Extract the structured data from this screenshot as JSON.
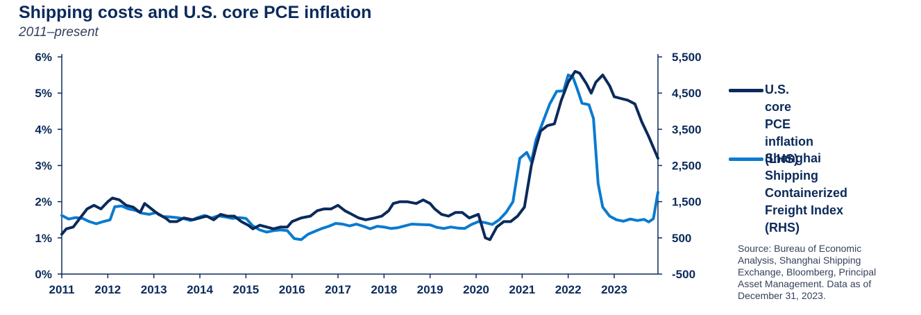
{
  "header": {
    "title": "Shipping costs and U.S. core PCE inflation",
    "subtitle": "2011–present"
  },
  "legend": {
    "items": [
      {
        "label": "U.S. core PCE\ninflation (LHS)",
        "color": "#0b2a5b"
      },
      {
        "label": "Shanghai Shipping\nContainerized\nFreight Index\n(RHS)",
        "color": "#0a7bd0"
      }
    ]
  },
  "source": "Source: Bureau of Economic Analysis, Shanghai Shipping Exchange, Bloomberg, Principal Asset Management. Data as of December 31, 2023.",
  "chart_data": {
    "type": "line",
    "title": "Shipping costs and U.S. core PCE inflation",
    "subtitle": "2011–present",
    "x_range": [
      2011.0,
      2023.95
    ],
    "x_ticks": [
      "2011",
      "2012",
      "2013",
      "2014",
      "2015",
      "2016",
      "2017",
      "2018",
      "2019",
      "2020",
      "2021",
      "2022",
      "2023"
    ],
    "y_left": {
      "ticks": [
        "0%",
        "1%",
        "2%",
        "3%",
        "4%",
        "5%",
        "6%"
      ],
      "range": [
        0,
        6
      ],
      "unit": "%"
    },
    "y_right": {
      "ticks": [
        "-500",
        "500",
        "1,500",
        "2,500",
        "3,500",
        "4,500",
        "5,500"
      ],
      "range": [
        -500,
        5500
      ]
    },
    "grid": false,
    "legend_position": "right",
    "series": [
      {
        "name": "U.S. core PCE inflation (LHS)",
        "axis": "left",
        "color": "#0b2a5b",
        "points": [
          [
            2011.0,
            1.1
          ],
          [
            2011.1,
            1.25
          ],
          [
            2011.25,
            1.3
          ],
          [
            2011.4,
            1.55
          ],
          [
            2011.55,
            1.8
          ],
          [
            2011.7,
            1.9
          ],
          [
            2011.85,
            1.8
          ],
          [
            2012.0,
            2.0
          ],
          [
            2012.1,
            2.1
          ],
          [
            2012.25,
            2.05
          ],
          [
            2012.4,
            1.9
          ],
          [
            2012.55,
            1.85
          ],
          [
            2012.7,
            1.7
          ],
          [
            2012.8,
            1.95
          ],
          [
            2012.95,
            1.8
          ],
          [
            2013.1,
            1.65
          ],
          [
            2013.25,
            1.55
          ],
          [
            2013.35,
            1.45
          ],
          [
            2013.5,
            1.45
          ],
          [
            2013.65,
            1.55
          ],
          [
            2013.85,
            1.5
          ],
          [
            2014.0,
            1.55
          ],
          [
            2014.15,
            1.6
          ],
          [
            2014.3,
            1.5
          ],
          [
            2014.45,
            1.65
          ],
          [
            2014.6,
            1.6
          ],
          [
            2014.75,
            1.6
          ],
          [
            2014.9,
            1.45
          ],
          [
            2015.05,
            1.35
          ],
          [
            2015.15,
            1.25
          ],
          [
            2015.3,
            1.35
          ],
          [
            2015.45,
            1.3
          ],
          [
            2015.6,
            1.25
          ],
          [
            2015.75,
            1.3
          ],
          [
            2015.9,
            1.3
          ],
          [
            2016.0,
            1.45
          ],
          [
            2016.2,
            1.55
          ],
          [
            2016.4,
            1.6
          ],
          [
            2016.55,
            1.75
          ],
          [
            2016.7,
            1.8
          ],
          [
            2016.85,
            1.8
          ],
          [
            2017.0,
            1.9
          ],
          [
            2017.15,
            1.75
          ],
          [
            2017.3,
            1.65
          ],
          [
            2017.45,
            1.55
          ],
          [
            2017.6,
            1.5
          ],
          [
            2017.8,
            1.55
          ],
          [
            2017.95,
            1.6
          ],
          [
            2018.1,
            1.75
          ],
          [
            2018.2,
            1.95
          ],
          [
            2018.35,
            2.0
          ],
          [
            2018.5,
            2.0
          ],
          [
            2018.7,
            1.95
          ],
          [
            2018.85,
            2.05
          ],
          [
            2019.0,
            1.95
          ],
          [
            2019.1,
            1.8
          ],
          [
            2019.25,
            1.65
          ],
          [
            2019.4,
            1.6
          ],
          [
            2019.55,
            1.7
          ],
          [
            2019.7,
            1.7
          ],
          [
            2019.85,
            1.55
          ],
          [
            2020.05,
            1.65
          ],
          [
            2020.2,
            1.0
          ],
          [
            2020.3,
            0.95
          ],
          [
            2020.45,
            1.3
          ],
          [
            2020.6,
            1.45
          ],
          [
            2020.75,
            1.45
          ],
          [
            2020.9,
            1.6
          ],
          [
            2021.05,
            1.85
          ],
          [
            2021.2,
            3.0
          ],
          [
            2021.3,
            3.5
          ],
          [
            2021.4,
            3.95
          ],
          [
            2021.55,
            4.1
          ],
          [
            2021.7,
            4.15
          ],
          [
            2021.85,
            4.8
          ],
          [
            2022.0,
            5.3
          ],
          [
            2022.15,
            5.6
          ],
          [
            2022.25,
            5.55
          ],
          [
            2022.4,
            5.25
          ],
          [
            2022.5,
            5.0
          ],
          [
            2022.6,
            5.3
          ],
          [
            2022.75,
            5.5
          ],
          [
            2022.9,
            5.2
          ],
          [
            2023.0,
            4.9
          ],
          [
            2023.15,
            4.85
          ],
          [
            2023.3,
            4.8
          ],
          [
            2023.45,
            4.7
          ],
          [
            2023.6,
            4.2
          ],
          [
            2023.75,
            3.8
          ],
          [
            2023.95,
            3.2
          ]
        ]
      },
      {
        "name": "Shanghai Shipping Containerized Freight Index (RHS)",
        "axis": "right",
        "color": "#0a7bd0",
        "points": [
          [
            2011.0,
            1120
          ],
          [
            2011.15,
            1020
          ],
          [
            2011.3,
            1060
          ],
          [
            2011.45,
            1040
          ],
          [
            2011.6,
            950
          ],
          [
            2011.75,
            890
          ],
          [
            2011.9,
            950
          ],
          [
            2012.05,
            1000
          ],
          [
            2012.15,
            1360
          ],
          [
            2012.3,
            1380
          ],
          [
            2012.45,
            1300
          ],
          [
            2012.6,
            1260
          ],
          [
            2012.75,
            1180
          ],
          [
            2012.9,
            1150
          ],
          [
            2013.05,
            1200
          ],
          [
            2013.2,
            1090
          ],
          [
            2013.35,
            1080
          ],
          [
            2013.5,
            1060
          ],
          [
            2013.65,
            1030
          ],
          [
            2013.8,
            980
          ],
          [
            2013.95,
            1060
          ],
          [
            2014.1,
            1120
          ],
          [
            2014.25,
            1050
          ],
          [
            2014.4,
            1110
          ],
          [
            2014.55,
            1080
          ],
          [
            2014.7,
            1040
          ],
          [
            2014.85,
            1060
          ],
          [
            2015.0,
            1040
          ],
          [
            2015.15,
            830
          ],
          [
            2015.3,
            720
          ],
          [
            2015.45,
            660
          ],
          [
            2015.6,
            700
          ],
          [
            2015.75,
            720
          ],
          [
            2015.9,
            700
          ],
          [
            2016.05,
            480
          ],
          [
            2016.2,
            450
          ],
          [
            2016.35,
            600
          ],
          [
            2016.5,
            680
          ],
          [
            2016.65,
            760
          ],
          [
            2016.8,
            820
          ],
          [
            2016.95,
            900
          ],
          [
            2017.1,
            880
          ],
          [
            2017.25,
            830
          ],
          [
            2017.4,
            880
          ],
          [
            2017.55,
            820
          ],
          [
            2017.7,
            750
          ],
          [
            2017.85,
            820
          ],
          [
            2018.0,
            800
          ],
          [
            2018.15,
            760
          ],
          [
            2018.3,
            780
          ],
          [
            2018.45,
            830
          ],
          [
            2018.6,
            880
          ],
          [
            2018.75,
            870
          ],
          [
            2019.0,
            860
          ],
          [
            2019.15,
            790
          ],
          [
            2019.3,
            760
          ],
          [
            2019.45,
            800
          ],
          [
            2019.6,
            770
          ],
          [
            2019.75,
            760
          ],
          [
            2019.9,
            870
          ],
          [
            2020.05,
            950
          ],
          [
            2020.2,
            920
          ],
          [
            2020.35,
            870
          ],
          [
            2020.5,
            1000
          ],
          [
            2020.65,
            1200
          ],
          [
            2020.8,
            1500
          ],
          [
            2020.95,
            2700
          ],
          [
            2021.1,
            2860
          ],
          [
            2021.2,
            2600
          ],
          [
            2021.3,
            3200
          ],
          [
            2021.45,
            3700
          ],
          [
            2021.6,
            4200
          ],
          [
            2021.75,
            4550
          ],
          [
            2021.9,
            4560
          ],
          [
            2022.0,
            5000
          ],
          [
            2022.1,
            4950
          ],
          [
            2022.2,
            4600
          ],
          [
            2022.3,
            4220
          ],
          [
            2022.45,
            4180
          ],
          [
            2022.55,
            3800
          ],
          [
            2022.65,
            2000
          ],
          [
            2022.75,
            1350
          ],
          [
            2022.9,
            1100
          ],
          [
            2023.05,
            1000
          ],
          [
            2023.2,
            960
          ],
          [
            2023.35,
            1020
          ],
          [
            2023.5,
            980
          ],
          [
            2023.65,
            1010
          ],
          [
            2023.75,
            940
          ],
          [
            2023.85,
            1030
          ],
          [
            2023.95,
            1760
          ]
        ]
      }
    ]
  }
}
